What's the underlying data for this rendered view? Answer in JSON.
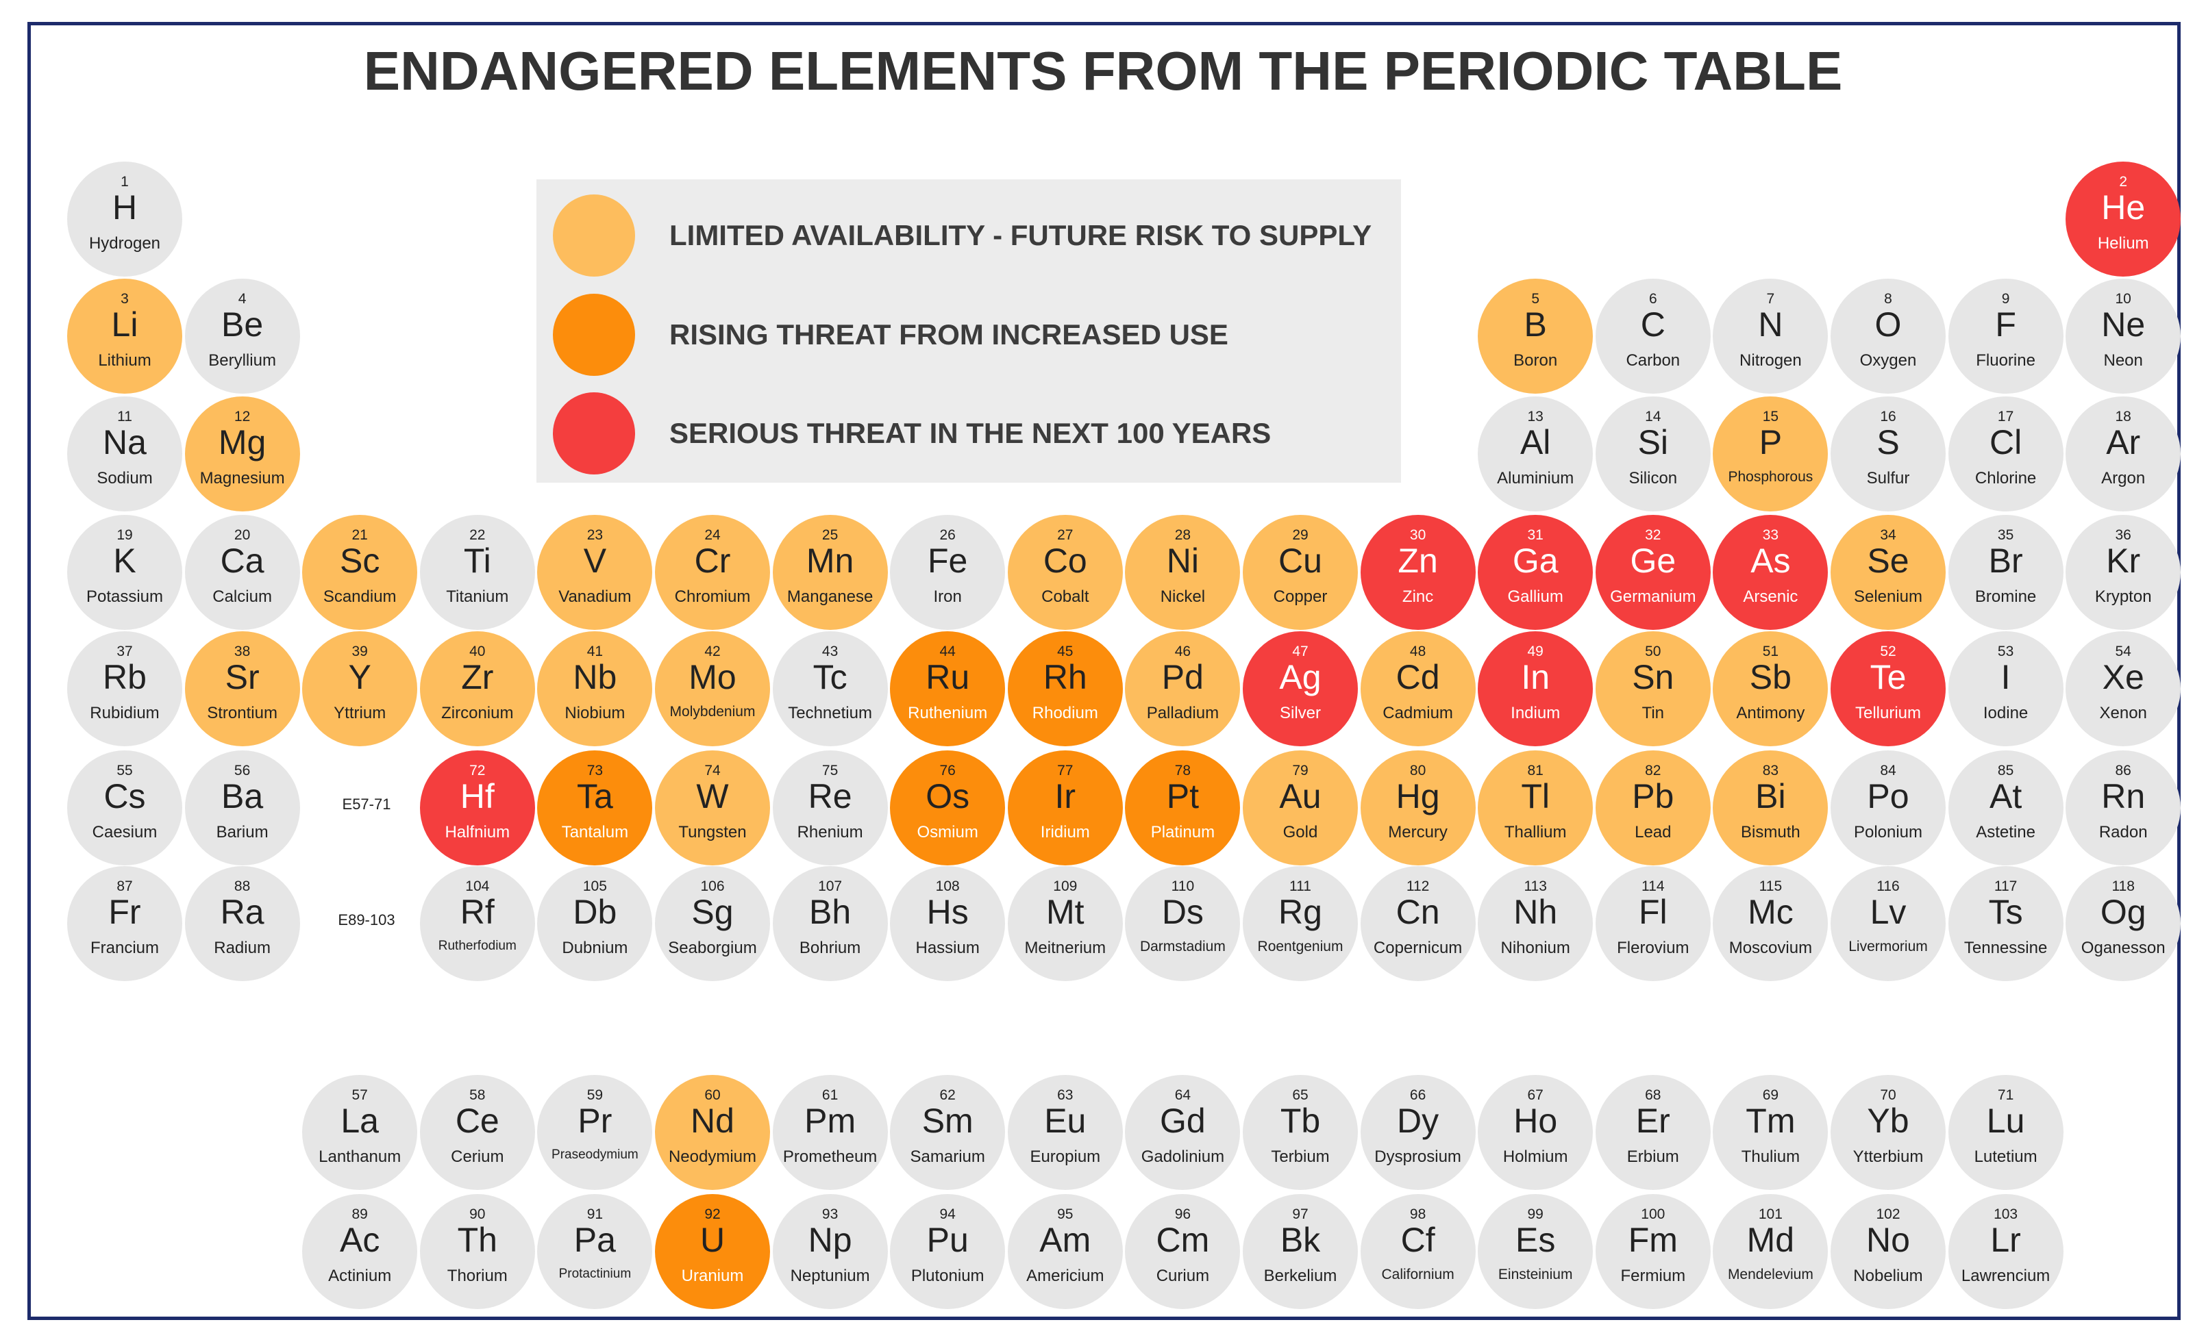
{
  "title": "ENDANGERED ELEMENTS FROM THE PERIODIC TABLE",
  "colors": {
    "none": "#e6e6e6",
    "limited": "#fdbd5d",
    "rising": "#fc8d0c",
    "serious": "#f43e3e",
    "border": "#1d2b6b"
  },
  "legend": [
    {
      "key": "limited",
      "label": "LIMITED AVAILABILITY - FUTURE RISK TO SUPPLY"
    },
    {
      "key": "rising",
      "label": "RISING THREAT FROM INCREASED USE"
    },
    {
      "key": "serious",
      "label": "SERIOUS THREAT IN THE NEXT 100 YEARS"
    }
  ],
  "series_refs": {
    "lanthanides": "E57-71",
    "actinides": "E89-103"
  },
  "elements": [
    {
      "n": "1",
      "s": "H",
      "name": "Hydrogen",
      "status": "none"
    },
    {
      "n": "2",
      "s": "He",
      "name": "Helium",
      "status": "serious"
    },
    {
      "n": "3",
      "s": "Li",
      "name": "Lithium",
      "status": "limited"
    },
    {
      "n": "4",
      "s": "Be",
      "name": "Beryllium",
      "status": "none"
    },
    {
      "n": "5",
      "s": "B",
      "name": "Boron",
      "status": "limited"
    },
    {
      "n": "6",
      "s": "C",
      "name": "Carbon",
      "status": "none"
    },
    {
      "n": "7",
      "s": "N",
      "name": "Nitrogen",
      "status": "none"
    },
    {
      "n": "8",
      "s": "O",
      "name": "Oxygen",
      "status": "none"
    },
    {
      "n": "9",
      "s": "F",
      "name": "Fluorine",
      "status": "none"
    },
    {
      "n": "10",
      "s": "Ne",
      "name": "Neon",
      "status": "none"
    },
    {
      "n": "11",
      "s": "Na",
      "name": "Sodium",
      "status": "none"
    },
    {
      "n": "12",
      "s": "Mg",
      "name": "Magnesium",
      "status": "limited"
    },
    {
      "n": "13",
      "s": "Al",
      "name": "Aluminium",
      "status": "none"
    },
    {
      "n": "14",
      "s": "Si",
      "name": "Silicon",
      "status": "none"
    },
    {
      "n": "15",
      "s": "P",
      "name": "Phosphorous",
      "status": "limited"
    },
    {
      "n": "16",
      "s": "S",
      "name": "Sulfur",
      "status": "none"
    },
    {
      "n": "17",
      "s": "Cl",
      "name": "Chlorine",
      "status": "none"
    },
    {
      "n": "18",
      "s": "Ar",
      "name": "Argon",
      "status": "none"
    },
    {
      "n": "19",
      "s": "K",
      "name": "Potassium",
      "status": "none"
    },
    {
      "n": "20",
      "s": "Ca",
      "name": "Calcium",
      "status": "none"
    },
    {
      "n": "21",
      "s": "Sc",
      "name": "Scandium",
      "status": "limited"
    },
    {
      "n": "22",
      "s": "Ti",
      "name": "Titanium",
      "status": "none"
    },
    {
      "n": "23",
      "s": "V",
      "name": "Vanadium",
      "status": "limited"
    },
    {
      "n": "24",
      "s": "Cr",
      "name": "Chromium",
      "status": "limited"
    },
    {
      "n": "25",
      "s": "Mn",
      "name": "Manganese",
      "status": "limited"
    },
    {
      "n": "26",
      "s": "Fe",
      "name": "Iron",
      "status": "none"
    },
    {
      "n": "27",
      "s": "Co",
      "name": "Cobalt",
      "status": "limited"
    },
    {
      "n": "28",
      "s": "Ni",
      "name": "Nickel",
      "status": "limited"
    },
    {
      "n": "29",
      "s": "Cu",
      "name": "Copper",
      "status": "limited"
    },
    {
      "n": "30",
      "s": "Zn",
      "name": "Zinc",
      "status": "serious"
    },
    {
      "n": "31",
      "s": "Ga",
      "name": "Gallium",
      "status": "serious"
    },
    {
      "n": "32",
      "s": "Ge",
      "name": "Germanium",
      "status": "serious"
    },
    {
      "n": "33",
      "s": "As",
      "name": "Arsenic",
      "status": "serious"
    },
    {
      "n": "34",
      "s": "Se",
      "name": "Selenium",
      "status": "limited"
    },
    {
      "n": "35",
      "s": "Br",
      "name": "Bromine",
      "status": "none"
    },
    {
      "n": "36",
      "s": "Kr",
      "name": "Krypton",
      "status": "none"
    },
    {
      "n": "37",
      "s": "Rb",
      "name": "Rubidium",
      "status": "none"
    },
    {
      "n": "38",
      "s": "Sr",
      "name": "Strontium",
      "status": "limited"
    },
    {
      "n": "39",
      "s": "Y",
      "name": "Yttrium",
      "status": "limited"
    },
    {
      "n": "40",
      "s": "Zr",
      "name": "Zirconium",
      "status": "limited"
    },
    {
      "n": "41",
      "s": "Nb",
      "name": "Niobium",
      "status": "limited"
    },
    {
      "n": "42",
      "s": "Mo",
      "name": "Molybdenium",
      "status": "limited"
    },
    {
      "n": "43",
      "s": "Tc",
      "name": "Technetium",
      "status": "none"
    },
    {
      "n": "44",
      "s": "Ru",
      "name": "Ruthenium",
      "status": "rising"
    },
    {
      "n": "45",
      "s": "Rh",
      "name": "Rhodium",
      "status": "rising"
    },
    {
      "n": "46",
      "s": "Pd",
      "name": "Palladium",
      "status": "limited"
    },
    {
      "n": "47",
      "s": "Ag",
      "name": "Silver",
      "status": "serious"
    },
    {
      "n": "48",
      "s": "Cd",
      "name": "Cadmium",
      "status": "limited"
    },
    {
      "n": "49",
      "s": "In",
      "name": "Indium",
      "status": "serious"
    },
    {
      "n": "50",
      "s": "Sn",
      "name": "Tin",
      "status": "limited"
    },
    {
      "n": "51",
      "s": "Sb",
      "name": "Antimony",
      "status": "limited"
    },
    {
      "n": "52",
      "s": "Te",
      "name": "Tellurium",
      "status": "serious"
    },
    {
      "n": "53",
      "s": "I",
      "name": "Iodine",
      "status": "none"
    },
    {
      "n": "54",
      "s": "Xe",
      "name": "Xenon",
      "status": "none"
    },
    {
      "n": "55",
      "s": "Cs",
      "name": "Caesium",
      "status": "none"
    },
    {
      "n": "56",
      "s": "Ba",
      "name": "Barium",
      "status": "none"
    },
    {
      "n": "72",
      "s": "Hf",
      "name": "Halfnium",
      "status": "serious"
    },
    {
      "n": "73",
      "s": "Ta",
      "name": "Tantalum",
      "status": "rising"
    },
    {
      "n": "74",
      "s": "W",
      "name": "Tungsten",
      "status": "limited"
    },
    {
      "n": "75",
      "s": "Re",
      "name": "Rhenium",
      "status": "none"
    },
    {
      "n": "76",
      "s": "Os",
      "name": "Osmium",
      "status": "rising"
    },
    {
      "n": "77",
      "s": "Ir",
      "name": "Iridium",
      "status": "rising"
    },
    {
      "n": "78",
      "s": "Pt",
      "name": "Platinum",
      "status": "rising"
    },
    {
      "n": "79",
      "s": "Au",
      "name": "Gold",
      "status": "limited"
    },
    {
      "n": "80",
      "s": "Hg",
      "name": "Mercury",
      "status": "limited"
    },
    {
      "n": "81",
      "s": "Tl",
      "name": "Thallium",
      "status": "limited"
    },
    {
      "n": "82",
      "s": "Pb",
      "name": "Lead",
      "status": "limited"
    },
    {
      "n": "83",
      "s": "Bi",
      "name": "Bismuth",
      "status": "limited"
    },
    {
      "n": "84",
      "s": "Po",
      "name": "Polonium",
      "status": "none"
    },
    {
      "n": "85",
      "s": "At",
      "name": "Astetine",
      "status": "none"
    },
    {
      "n": "86",
      "s": "Rn",
      "name": "Radon",
      "status": "none"
    },
    {
      "n": "87",
      "s": "Fr",
      "name": "Francium",
      "status": "none"
    },
    {
      "n": "88",
      "s": "Ra",
      "name": "Radium",
      "status": "none"
    },
    {
      "n": "104",
      "s": "Rf",
      "name": "Rutherfodium",
      "status": "none"
    },
    {
      "n": "105",
      "s": "Db",
      "name": "Dubnium",
      "status": "none"
    },
    {
      "n": "106",
      "s": "Sg",
      "name": "Seaborgium",
      "status": "none"
    },
    {
      "n": "107",
      "s": "Bh",
      "name": "Bohrium",
      "status": "none"
    },
    {
      "n": "108",
      "s": "Hs",
      "name": "Hassium",
      "status": "none"
    },
    {
      "n": "109",
      "s": "Mt",
      "name": "Meitnerium",
      "status": "none"
    },
    {
      "n": "110",
      "s": "Ds",
      "name": "Darmstadium",
      "status": "none"
    },
    {
      "n": "111",
      "s": "Rg",
      "name": "Roentgenium",
      "status": "none"
    },
    {
      "n": "112",
      "s": "Cn",
      "name": "Copernicum",
      "status": "none"
    },
    {
      "n": "113",
      "s": "Nh",
      "name": "Nihonium",
      "status": "none"
    },
    {
      "n": "114",
      "s": "Fl",
      "name": "Flerovium",
      "status": "none"
    },
    {
      "n": "115",
      "s": "Mc",
      "name": "Moscovium",
      "status": "none"
    },
    {
      "n": "116",
      "s": "Lv",
      "name": "Livermorium",
      "status": "none"
    },
    {
      "n": "117",
      "s": "Ts",
      "name": "Tennessine",
      "status": "none"
    },
    {
      "n": "118",
      "s": "Og",
      "name": "Oganesson",
      "status": "none"
    },
    {
      "n": "57",
      "s": "La",
      "name": "Lanthanum",
      "status": "none"
    },
    {
      "n": "58",
      "s": "Ce",
      "name": "Cerium",
      "status": "none"
    },
    {
      "n": "59",
      "s": "Pr",
      "name": "Praseodymium",
      "status": "none"
    },
    {
      "n": "60",
      "s": "Nd",
      "name": "Neodymium",
      "status": "limited"
    },
    {
      "n": "61",
      "s": "Pm",
      "name": "Prometheum",
      "status": "none"
    },
    {
      "n": "62",
      "s": "Sm",
      "name": "Samarium",
      "status": "none"
    },
    {
      "n": "63",
      "s": "Eu",
      "name": "Europium",
      "status": "none"
    },
    {
      "n": "64",
      "s": "Gd",
      "name": "Gadolinium",
      "status": "none"
    },
    {
      "n": "65",
      "s": "Tb",
      "name": "Terbium",
      "status": "none"
    },
    {
      "n": "66",
      "s": "Dy",
      "name": "Dysprosium",
      "status": "none"
    },
    {
      "n": "67",
      "s": "Ho",
      "name": "Holmium",
      "status": "none"
    },
    {
      "n": "68",
      "s": "Er",
      "name": "Erbium",
      "status": "none"
    },
    {
      "n": "69",
      "s": "Tm",
      "name": "Thulium",
      "status": "none"
    },
    {
      "n": "70",
      "s": "Yb",
      "name": "Ytterbium",
      "status": "none"
    },
    {
      "n": "71",
      "s": "Lu",
      "name": "Lutetium",
      "status": "none"
    },
    {
      "n": "89",
      "s": "Ac",
      "name": "Actinium",
      "status": "none"
    },
    {
      "n": "90",
      "s": "Th",
      "name": "Thorium",
      "status": "none"
    },
    {
      "n": "91",
      "s": "Pa",
      "name": "Protactinium",
      "status": "none"
    },
    {
      "n": "92",
      "s": "U",
      "name": "Uranium",
      "status": "rising"
    },
    {
      "n": "93",
      "s": "Np",
      "name": "Neptunium",
      "status": "none"
    },
    {
      "n": "94",
      "s": "Pu",
      "name": "Plutonium",
      "status": "none"
    },
    {
      "n": "95",
      "s": "Am",
      "name": "Americium",
      "status": "none"
    },
    {
      "n": "96",
      "s": "Cm",
      "name": "Curium",
      "status": "none"
    },
    {
      "n": "97",
      "s": "Bk",
      "name": "Berkelium",
      "status": "none"
    },
    {
      "n": "98",
      "s": "Cf",
      "name": "Californium",
      "status": "none"
    },
    {
      "n": "99",
      "s": "Es",
      "name": "Einsteinium",
      "status": "none"
    },
    {
      "n": "100",
      "s": "Fm",
      "name": "Fermium",
      "status": "none"
    },
    {
      "n": "101",
      "s": "Md",
      "name": "Mendelevium",
      "status": "none"
    },
    {
      "n": "102",
      "s": "No",
      "name": "Nobelium",
      "status": "none"
    },
    {
      "n": "103",
      "s": "Lr",
      "name": "Lawrencium",
      "status": "none"
    }
  ]
}
